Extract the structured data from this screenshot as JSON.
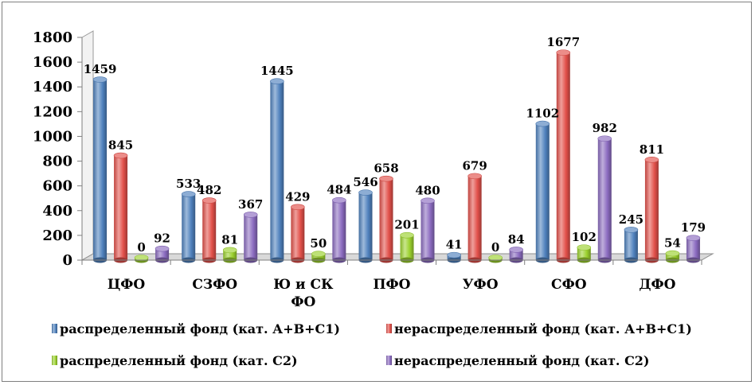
{
  "chart_data": {
    "type": "bar",
    "categories": [
      [
        "ЦФО"
      ],
      [
        "СЗФО"
      ],
      [
        "Ю и СК",
        "ФО"
      ],
      [
        "ПФО"
      ],
      [
        "УФО"
      ],
      [
        "СФО"
      ],
      [
        "ДФО"
      ]
    ],
    "ylim": [
      0,
      1800
    ],
    "yticks": [
      0,
      200,
      400,
      600,
      800,
      1000,
      1200,
      1400,
      1600,
      1800
    ],
    "grid": false,
    "legend_position": "bottom",
    "series": [
      {
        "name": "распределенный фонд (кат. А+В+С1)",
        "color": "#4f81bd",
        "values": [
          1459,
          533,
          1445,
          546,
          41,
          1102,
          245
        ]
      },
      {
        "name": "нераспределенный фонд (кат. А+В+С1)",
        "color": "#e2504a",
        "values": [
          845,
          482,
          429,
          658,
          679,
          1677,
          811
        ]
      },
      {
        "name": "распределенный фонд (кат. С2)",
        "color": "#9bd12e",
        "values": [
          0,
          81,
          50,
          201,
          0,
          102,
          54
        ]
      },
      {
        "name": "нераспределенный фонд (кат. С2)",
        "color": "#8b6bc0",
        "values": [
          92,
          367,
          484,
          480,
          84,
          982,
          179
        ]
      }
    ]
  }
}
